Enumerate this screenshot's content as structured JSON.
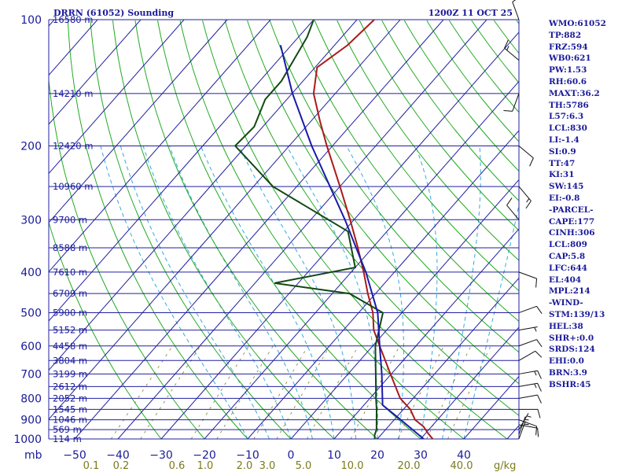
{
  "header": {
    "title": "DRRN (61052) Sounding",
    "time": "1200Z 11 OCT 25"
  },
  "colors": {
    "isobar": "#2020a0",
    "isotherm": "#2020a0",
    "dry_adiabat": "#22aa22",
    "moist_adiabat": "#33aadd",
    "mixing_ratio": "#8a8a3a",
    "temperature": "#aa1a1a",
    "dewpoint": "#124812",
    "parcel": "#1a1aaa",
    "wind": "#101010",
    "label_blue": "#1a1a9a",
    "label_olive": "#7a7a1a"
  },
  "indices": [
    "WMO:61052",
    "TP:882",
    "FRZ:594",
    "WB0:621",
    "PW:1.53",
    "RH:60.6",
    "MAXT:36.2",
    "TH:5786",
    "L57:6.3",
    "LCL:830",
    "LI:-1.4",
    "SI:0.9",
    "TT:47",
    "KI:31",
    "SW:145",
    "EI:-0.8",
    "-PARCEL-",
    "CAPE:177",
    "CINH:306",
    "LCL:809",
    "CAP:5.8",
    "LFC:644",
    "EL:404",
    "MPL:214",
    "-WIND-",
    "STM:139/13",
    "HEL:38",
    "SHR+:0.0",
    "SRDS:124",
    "EHI:0.0",
    "BRN:3.9",
    "BSHR:45"
  ],
  "chart_data": {
    "type": "line",
    "subtype": "skew-t log-p sounding diagram",
    "title": "DRRN (61052) Sounding",
    "valid_time": "1200Z 11 OCT 25",
    "pressure_axis_label": "mb",
    "pressure_range_mb": [
      1000,
      100
    ],
    "pressure_ticks": [
      100,
      200,
      300,
      400,
      500,
      600,
      700,
      800,
      900,
      1000
    ],
    "isobars_mb": [
      100,
      150,
      200,
      250,
      300,
      350,
      400,
      450,
      500,
      550,
      600,
      650,
      700,
      750,
      800,
      850,
      900,
      950,
      1000
    ],
    "height_labels": [
      {
        "p": 100,
        "text": "16580 m"
      },
      {
        "p": 150,
        "text": "14210 m"
      },
      {
        "p": 200,
        "text": "12420 m"
      },
      {
        "p": 250,
        "text": "10960 m"
      },
      {
        "p": 300,
        "text": "9700 m"
      },
      {
        "p": 350,
        "text": "8588 m"
      },
      {
        "p": 400,
        "text": "7610 m"
      },
      {
        "p": 450,
        "text": "6709 m"
      },
      {
        "p": 500,
        "text": "5900 m"
      },
      {
        "p": 550,
        "text": "5152 m"
      },
      {
        "p": 600,
        "text": "4458 m"
      },
      {
        "p": 650,
        "text": "3804 m"
      },
      {
        "p": 700,
        "text": "3199 m"
      },
      {
        "p": 750,
        "text": "2612 m"
      },
      {
        "p": 800,
        "text": "2052 m"
      },
      {
        "p": 850,
        "text": "1545 m"
      },
      {
        "p": 900,
        "text": "1046 m"
      },
      {
        "p": 950,
        "text": "569 m"
      },
      {
        "p": 1000,
        "text": "114 m"
      }
    ],
    "temperature_axis_label": "°C at 1000 mb (skewed isotherms)",
    "temperature_ticks": [
      -50,
      -40,
      -30,
      -20,
      -10,
      0,
      10,
      20,
      30,
      40
    ],
    "mixing_ratio_axis_label": "g/kg",
    "mixing_ratio_ticks": [
      0.1,
      0.2,
      0.6,
      1.0,
      2.0,
      3.0,
      5.0,
      10.0,
      20.0,
      30.0,
      40.0
    ],
    "mixing_ratio_tick_labels": [
      "0.1",
      "0.2",
      "0.6",
      "1.0",
      "2.0",
      "3.0",
      "5.0",
      "10.0",
      "20.0",
      "",
      "40.0"
    ],
    "mixing_ratio_unit_label": "g/kg",
    "series": [
      {
        "name": "Temperature",
        "points": [
          {
            "p": 1000,
            "t": 32.8
          },
          {
            "p": 970,
            "t": 30.6
          },
          {
            "p": 935,
            "t": 28.2
          },
          {
            "p": 900,
            "t": 24.8
          },
          {
            "p": 850,
            "t": 21.6
          },
          {
            "p": 800,
            "t": 17.0
          },
          {
            "p": 700,
            "t": 9.8
          },
          {
            "p": 600,
            "t": 1.6
          },
          {
            "p": 550,
            "t": -3.0
          },
          {
            "p": 500,
            "t": -6.7
          },
          {
            "p": 450,
            "t": -11.8
          },
          {
            "p": 400,
            "t": -17.1
          },
          {
            "p": 350,
            "t": -23.4
          },
          {
            "p": 300,
            "t": -30.9
          },
          {
            "p": 250,
            "t": -40.0
          },
          {
            "p": 200,
            "t": -51.3
          },
          {
            "p": 175,
            "t": -57.8
          },
          {
            "p": 150,
            "t": -65.0
          },
          {
            "p": 130,
            "t": -69.5
          },
          {
            "p": 115,
            "t": -67.0
          },
          {
            "p": 100,
            "t": -66.0
          }
        ]
      },
      {
        "name": "Dewpoint",
        "points": [
          {
            "p": 1000,
            "t": 19.4
          },
          {
            "p": 980,
            "t": 18.6
          },
          {
            "p": 950,
            "t": 17.9
          },
          {
            "p": 900,
            "t": 15.9
          },
          {
            "p": 850,
            "t": 13.8
          },
          {
            "p": 800,
            "t": 11.4
          },
          {
            "p": 750,
            "t": 9.0
          },
          {
            "p": 700,
            "t": 6.4
          },
          {
            "p": 600,
            "t": 0.6
          },
          {
            "p": 500,
            "t": -4.4
          },
          {
            "p": 450,
            "t": -16.0
          },
          {
            "p": 425,
            "t": -35.5
          },
          {
            "p": 390,
            "t": -20.0
          },
          {
            "p": 320,
            "t": -29.0
          },
          {
            "p": 250,
            "t": -55.5
          },
          {
            "p": 200,
            "t": -72.5
          },
          {
            "p": 180,
            "t": -72.0
          },
          {
            "p": 155,
            "t": -75.0
          },
          {
            "p": 140,
            "t": -75.0
          },
          {
            "p": 110,
            "t": -78.0
          },
          {
            "p": 100,
            "t": -80.0
          }
        ]
      },
      {
        "name": "Parcel",
        "points": [
          {
            "p": 1000,
            "t": 30.7
          },
          {
            "p": 900,
            "t": 21.5
          },
          {
            "p": 830,
            "t": 14.3
          },
          {
            "p": 800,
            "t": 12.9
          },
          {
            "p": 700,
            "t": 7.8
          },
          {
            "p": 600,
            "t": 1.6
          },
          {
            "p": 500,
            "t": -5.6
          },
          {
            "p": 400,
            "t": -16.6
          },
          {
            "p": 300,
            "t": -32.1
          },
          {
            "p": 200,
            "t": -54.8
          },
          {
            "p": 150,
            "t": -69.9
          },
          {
            "p": 115,
            "t": -82.5
          }
        ]
      }
    ],
    "wind_barbs": [
      {
        "p": 1000,
        "dir": 20,
        "kt": 5
      },
      {
        "p": 975,
        "dir": 20,
        "kt": 5
      },
      {
        "p": 950,
        "dir": 30,
        "kt": 5
      },
      {
        "p": 925,
        "dir": 100,
        "kt": 10
      },
      {
        "p": 900,
        "dir": 110,
        "kt": 10
      },
      {
        "p": 850,
        "dir": 90,
        "kt": 10
      },
      {
        "p": 800,
        "dir": 80,
        "kt": 10
      },
      {
        "p": 750,
        "dir": 80,
        "kt": 15
      },
      {
        "p": 700,
        "dir": 80,
        "kt": 15
      },
      {
        "p": 650,
        "dir": 60,
        "kt": 10
      },
      {
        "p": 600,
        "dir": 70,
        "kt": 10
      },
      {
        "p": 550,
        "dir": 80,
        "kt": 5
      },
      {
        "p": 500,
        "dir": 70,
        "kt": 10
      },
      {
        "p": 400,
        "dir": 110,
        "kt": 10
      },
      {
        "p": 300,
        "dir": 320,
        "kt": 10
      },
      {
        "p": 250,
        "dir": 140,
        "kt": 15
      },
      {
        "p": 200,
        "dir": 130,
        "kt": 10
      },
      {
        "p": 150,
        "dir": 200,
        "kt": 10
      },
      {
        "p": 125,
        "dir": 310,
        "kt": 15
      },
      {
        "p": 100,
        "dir": 340,
        "kt": 10
      }
    ]
  }
}
